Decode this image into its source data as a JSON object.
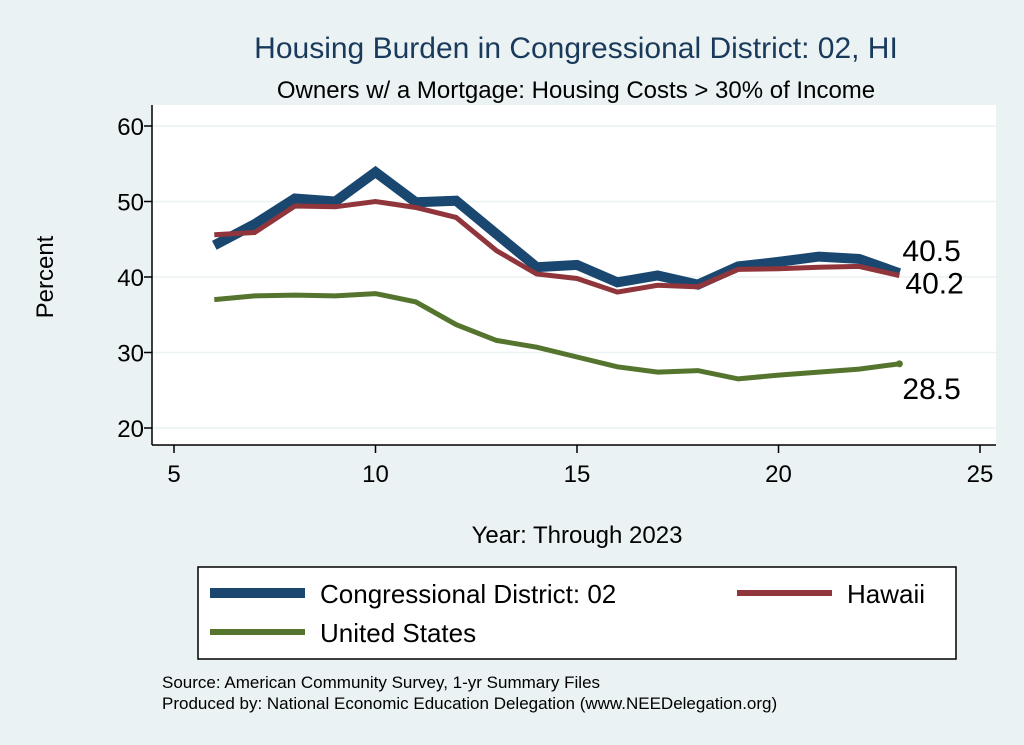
{
  "chart_data": {
    "type": "line",
    "title": "Housing Burden in Congressional District:  02, HI",
    "subtitle": "Owners w/ a Mortgage: Housing Costs > 30% of Income",
    "xlabel": "Year: Through 2023",
    "ylabel": "Percent",
    "xlim": [
      5,
      25
    ],
    "ylim": [
      20,
      60
    ],
    "xticks": [
      5,
      10,
      15,
      20,
      25
    ],
    "yticks": [
      20,
      30,
      40,
      50,
      60
    ],
    "grid": true,
    "legend_position": "bottom",
    "series": [
      {
        "name": "Congressional District:  02",
        "color": "#1a476f",
        "x": [
          6,
          7,
          8,
          9,
          10,
          11,
          12,
          13,
          14,
          15,
          16,
          17,
          18,
          19,
          20,
          21,
          22,
          23
        ],
        "values": [
          44.2,
          47.0,
          50.4,
          50.0,
          53.9,
          49.9,
          50.1,
          45.7,
          41.3,
          41.6,
          39.3,
          40.2,
          39.0,
          41.4,
          42.0,
          42.7,
          42.4,
          40.5
        ],
        "end_label": "40.5"
      },
      {
        "name": "Hawaii",
        "color": "#90353b",
        "x": [
          6,
          7,
          8,
          9,
          10,
          11,
          12,
          13,
          14,
          15,
          16,
          17,
          18,
          19,
          20,
          21,
          22,
          23
        ],
        "values": [
          45.6,
          45.9,
          49.4,
          49.3,
          50.0,
          49.2,
          47.9,
          43.5,
          40.4,
          39.8,
          38.0,
          38.9,
          38.7,
          41.0,
          41.1,
          41.3,
          41.4,
          40.2
        ],
        "end_label": "40.2"
      },
      {
        "name": "United States",
        "color": "#55752f",
        "x": [
          6,
          7,
          8,
          9,
          10,
          11,
          12,
          13,
          14,
          15,
          16,
          17,
          18,
          19,
          20,
          21,
          22,
          23
        ],
        "values": [
          37.0,
          37.5,
          37.6,
          37.5,
          37.8,
          36.7,
          33.7,
          31.6,
          30.7,
          29.4,
          28.1,
          27.4,
          27.6,
          26.5,
          27.0,
          27.4,
          27.8,
          28.5
        ],
        "end_label": "28.5"
      }
    ]
  },
  "source_text": "Source: American Community Survey, 1-yr Summary Files",
  "produced_text": "Produced by: National Economic Education Delegation (www.NEEDelegation.org)"
}
